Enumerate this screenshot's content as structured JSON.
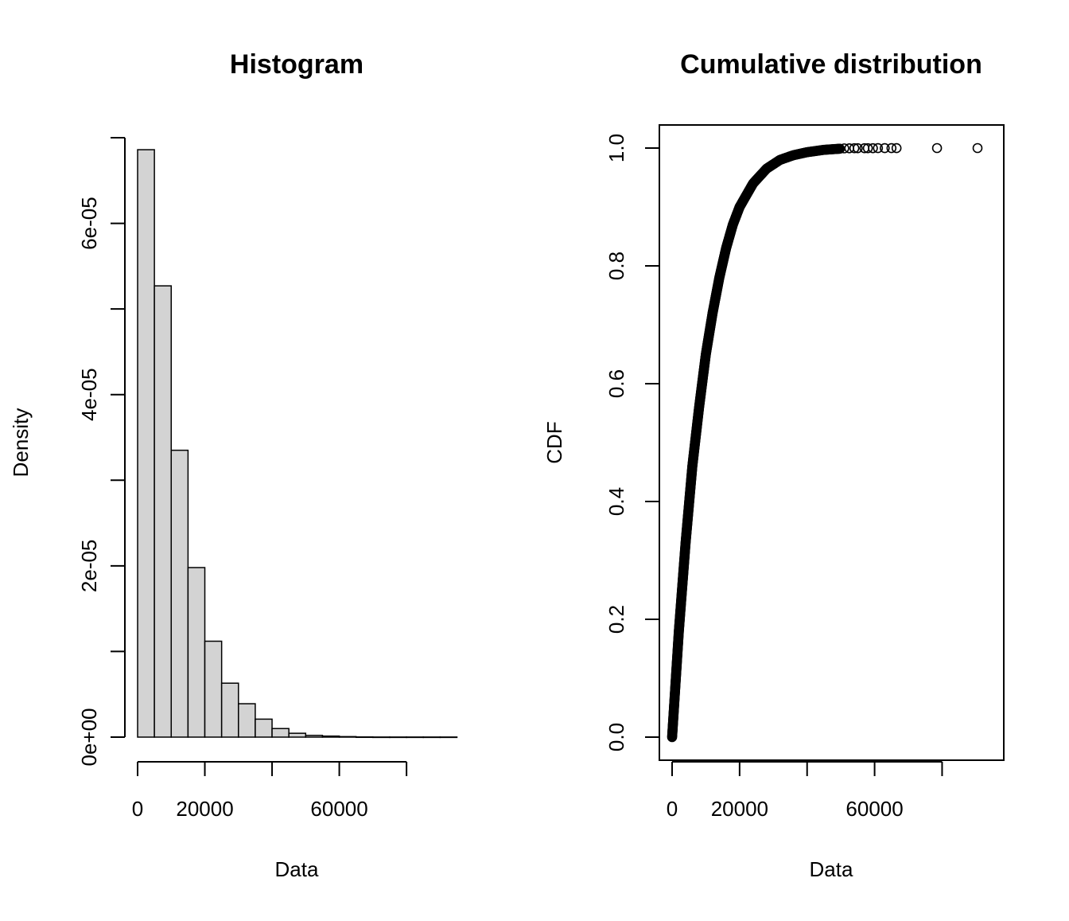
{
  "chart_data": [
    {
      "type": "bar",
      "title": "Histogram",
      "xlabel": "Data",
      "ylabel": "Density",
      "bin_width": 5000,
      "bins": [
        {
          "x0": 0,
          "x1": 5000,
          "density": 6.86e-05
        },
        {
          "x0": 5000,
          "x1": 10000,
          "density": 5.27e-05
        },
        {
          "x0": 10000,
          "x1": 15000,
          "density": 3.35e-05
        },
        {
          "x0": 15000,
          "x1": 20000,
          "density": 1.98e-05
        },
        {
          "x0": 20000,
          "x1": 25000,
          "density": 1.12e-05
        },
        {
          "x0": 25000,
          "x1": 30000,
          "density": 6.3e-06
        },
        {
          "x0": 30000,
          "x1": 35000,
          "density": 3.9e-06
        },
        {
          "x0": 35000,
          "x1": 40000,
          "density": 2.1e-06
        },
        {
          "x0": 40000,
          "x1": 45000,
          "density": 1e-06
        },
        {
          "x0": 45000,
          "x1": 50000,
          "density": 4.5e-07
        },
        {
          "x0": 50000,
          "x1": 55000,
          "density": 2e-07
        },
        {
          "x0": 55000,
          "x1": 60000,
          "density": 1.2e-07
        },
        {
          "x0": 60000,
          "x1": 65000,
          "density": 6e-08
        },
        {
          "x0": 65000,
          "x1": 70000,
          "density": 2e-08
        },
        {
          "x0": 70000,
          "x1": 75000,
          "density": 1e-08
        },
        {
          "x0": 75000,
          "x1": 80000,
          "density": 1e-08
        },
        {
          "x0": 80000,
          "x1": 85000,
          "density": 1e-08
        },
        {
          "x0": 85000,
          "x1": 90000,
          "density": 1e-08
        },
        {
          "x0": 90000,
          "x1": 95000,
          "density": 1e-08
        }
      ],
      "xlim": [
        0,
        95000
      ],
      "ylim": [
        0,
        7e-05
      ],
      "x_ticks": [
        0,
        20000,
        40000,
        60000,
        80000
      ],
      "x_tick_labels": [
        "0",
        "20000",
        "",
        "60000",
        ""
      ],
      "y_ticks": [
        0,
        1e-05,
        2e-05,
        3e-05,
        4e-05,
        5e-05,
        6e-05,
        7e-05
      ],
      "y_tick_labels": [
        "0e+00",
        "",
        "2e-05",
        "",
        "4e-05",
        "",
        "6e-05",
        ""
      ],
      "grid": false,
      "bar_fill": "#d3d3d3",
      "bar_stroke": "#000000"
    },
    {
      "type": "scatter",
      "title": "Cumulative distribution",
      "xlabel": "Data",
      "ylabel": "CDF",
      "distribution": "empirical CDF of data, approximately gamma with mean about 10000",
      "curve_points": [
        {
          "x": 0,
          "y": 0.0
        },
        {
          "x": 2000,
          "y": 0.18
        },
        {
          "x": 4000,
          "y": 0.33
        },
        {
          "x": 6000,
          "y": 0.46
        },
        {
          "x": 8000,
          "y": 0.56
        },
        {
          "x": 10000,
          "y": 0.65
        },
        {
          "x": 12000,
          "y": 0.72
        },
        {
          "x": 14000,
          "y": 0.78
        },
        {
          "x": 16000,
          "y": 0.83
        },
        {
          "x": 18000,
          "y": 0.87
        },
        {
          "x": 20000,
          "y": 0.9
        },
        {
          "x": 24000,
          "y": 0.94
        },
        {
          "x": 28000,
          "y": 0.965
        },
        {
          "x": 32000,
          "y": 0.98
        },
        {
          "x": 36000,
          "y": 0.988
        },
        {
          "x": 40000,
          "y": 0.993
        },
        {
          "x": 45000,
          "y": 0.997
        },
        {
          "x": 50000,
          "y": 0.999
        }
      ],
      "tail_points": [
        {
          "x": 51000,
          "y": 0.9995
        },
        {
          "x": 52500,
          "y": 0.9996
        },
        {
          "x": 54000,
          "y": 0.9997
        },
        {
          "x": 55000,
          "y": 0.9997
        },
        {
          "x": 57000,
          "y": 0.9998
        },
        {
          "x": 58000,
          "y": 0.9998
        },
        {
          "x": 59500,
          "y": 0.9998
        },
        {
          "x": 61000,
          "y": 0.9999
        },
        {
          "x": 63000,
          "y": 0.9999
        },
        {
          "x": 65000,
          "y": 0.9999
        },
        {
          "x": 66500,
          "y": 0.9999
        },
        {
          "x": 78500,
          "y": 1.0
        },
        {
          "x": 90500,
          "y": 1.0
        }
      ],
      "xlim": [
        0,
        90500
      ],
      "ylim": [
        0,
        1.0
      ],
      "x_ticks": [
        0,
        20000,
        40000,
        60000,
        80000
      ],
      "x_tick_labels": [
        "0",
        "20000",
        "",
        "60000",
        ""
      ],
      "y_ticks": [
        0.0,
        0.2,
        0.4,
        0.6,
        0.8,
        1.0
      ],
      "y_tick_labels": [
        "0.0",
        "0.2",
        "0.4",
        "0.6",
        "0.8",
        "1.0"
      ],
      "grid": false,
      "marker": "open-circle"
    }
  ]
}
